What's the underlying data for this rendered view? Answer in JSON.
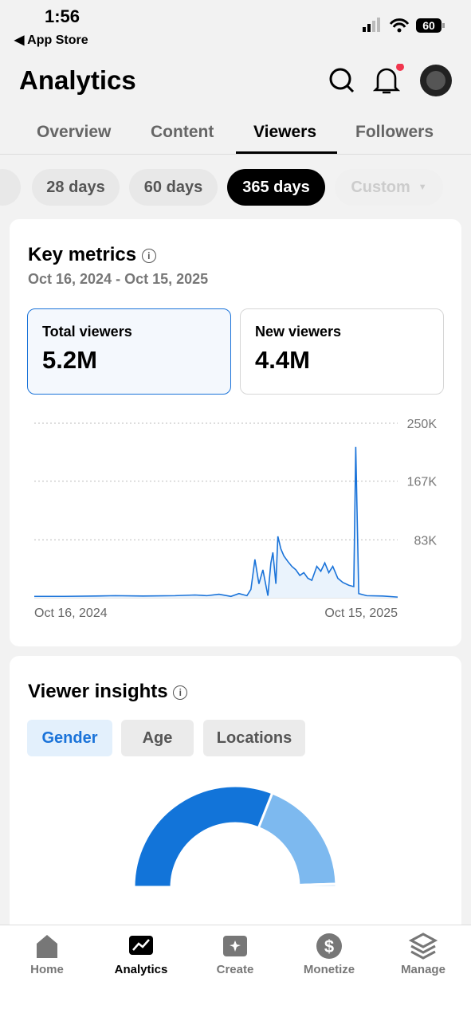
{
  "status_bar": {
    "time": "1:56",
    "back": "App Store",
    "battery": "60"
  },
  "header": {
    "title": "Analytics"
  },
  "tabs": [
    "Overview",
    "Content",
    "Viewers",
    "Followers"
  ],
  "active_tab": 2,
  "ranges": [
    "28 days",
    "60 days",
    "365 days",
    "Custom"
  ],
  "active_range": 2,
  "key_metrics": {
    "title": "Key metrics",
    "date_range": "Oct 16, 2024 - Oct 15, 2025",
    "metrics": [
      {
        "label": "Total viewers",
        "value": "5.2M"
      },
      {
        "label": "New viewers",
        "value": "4.4M"
      }
    ]
  },
  "metrics_chart": {
    "type": "line",
    "color": "#1a73d9",
    "x": [
      0,
      30,
      61,
      81,
      109,
      141,
      161,
      173,
      185,
      197,
      205,
      213,
      217,
      221,
      225,
      229,
      234,
      237,
      239,
      242,
      244,
      247,
      250,
      254,
      258,
      262,
      266,
      270,
      274,
      278,
      283,
      287,
      291,
      295,
      299,
      304,
      309,
      315,
      320,
      322,
      325,
      333,
      349,
      364
    ],
    "values": [
      2000,
      2000,
      2500,
      3000,
      2500,
      3000,
      4000,
      3000,
      5000,
      2000,
      6000,
      3000,
      12000,
      55000,
      20000,
      40000,
      3000,
      50000,
      65000,
      20000,
      88000,
      70000,
      60000,
      52000,
      45000,
      40000,
      32000,
      36000,
      28000,
      25000,
      45000,
      38000,
      50000,
      36000,
      45000,
      28000,
      22000,
      18000,
      16000,
      216000,
      6000,
      3000,
      2500,
      1000
    ],
    "xlim": [
      0,
      364
    ],
    "xticks": [
      {
        "value": 0,
        "label": "Oct 16, 2024"
      },
      {
        "value": 364,
        "label": "Oct 15, 2025"
      }
    ],
    "ylim": [
      0,
      250000
    ],
    "yticks": [
      {
        "value": 250000,
        "label": "250K"
      },
      {
        "value": 167000,
        "label": "167K"
      },
      {
        "value": 83000,
        "label": "83K"
      }
    ],
    "grid": true
  },
  "viewer_insights": {
    "title": "Viewer insights",
    "tabs": [
      "Gender",
      "Age",
      "Locations"
    ],
    "active_tab": 0
  },
  "gender_chart": {
    "type": "pie",
    "values": [
      62,
      37,
      1
    ],
    "colors": [
      "#1274d9",
      "#7db9ef",
      "#c7e2f9"
    ]
  },
  "nav": [
    "Home",
    "Analytics",
    "Create",
    "Monetize",
    "Manage"
  ],
  "active_nav": 1
}
